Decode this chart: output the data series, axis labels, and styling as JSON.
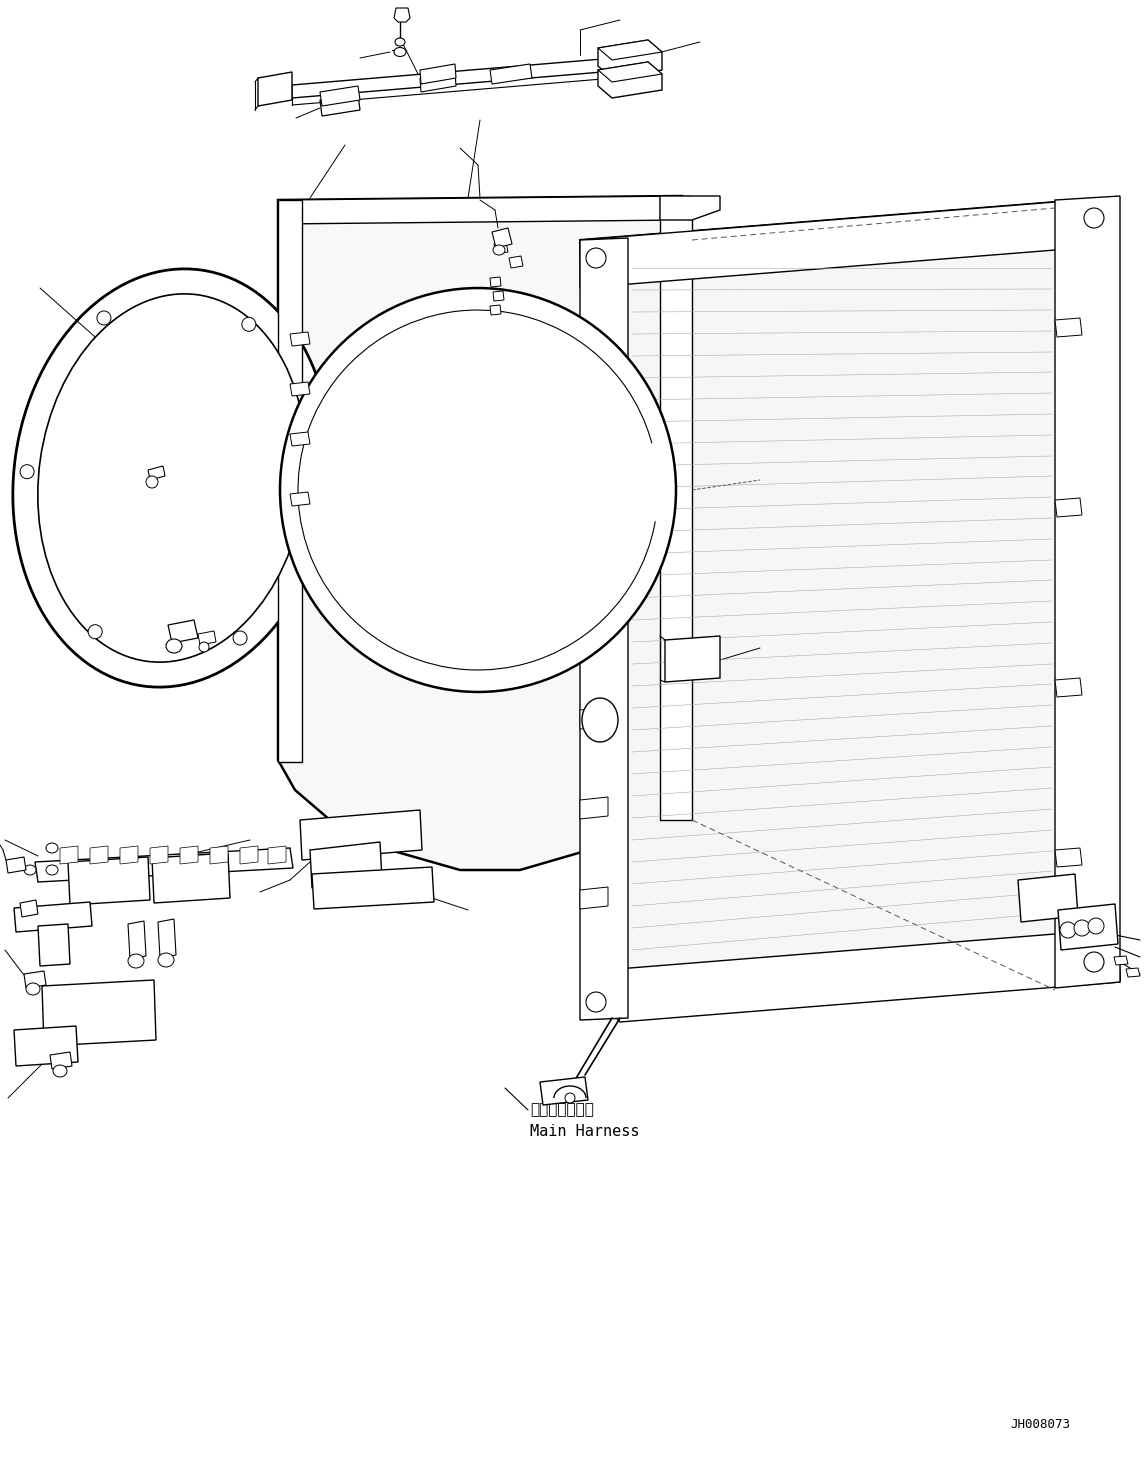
{
  "background_color": "#ffffff",
  "line_color": "#000000",
  "diagram_code": "JH008073",
  "annotation_japanese": "メインハーネス",
  "annotation_english": "Main Harness",
  "figsize": [
    11.45,
    14.58
  ],
  "dpi": 100
}
